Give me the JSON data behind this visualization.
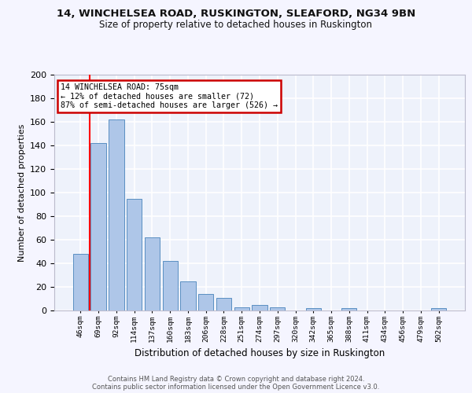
{
  "title1": "14, WINCHELSEA ROAD, RUSKINGTON, SLEAFORD, NG34 9BN",
  "title2": "Size of property relative to detached houses in Ruskington",
  "xlabel": "Distribution of detached houses by size in Ruskington",
  "ylabel": "Number of detached properties",
  "bar_values": [
    48,
    142,
    162,
    95,
    62,
    42,
    25,
    14,
    11,
    3,
    5,
    3,
    0,
    2,
    0,
    2,
    0,
    0,
    0,
    0,
    2
  ],
  "bar_labels": [
    "46sqm",
    "69sqm",
    "92sqm",
    "114sqm",
    "137sqm",
    "160sqm",
    "183sqm",
    "206sqm",
    "228sqm",
    "251sqm",
    "274sqm",
    "297sqm",
    "320sqm",
    "342sqm",
    "365sqm",
    "388sqm",
    "411sqm",
    "434sqm",
    "456sqm",
    "479sqm",
    "502sqm"
  ],
  "bar_color": "#aec6e8",
  "bar_edge_color": "#5a8fc2",
  "background_color": "#eef2fb",
  "grid_color": "#ffffff",
  "red_line_x": 0.5,
  "annotation_text": "14 WINCHELSEA ROAD: 75sqm\n← 12% of detached houses are smaller (72)\n87% of semi-detached houses are larger (526) →",
  "annotation_box_color": "#ffffff",
  "annotation_box_edge": "#cc0000",
  "footer": "Contains HM Land Registry data © Crown copyright and database right 2024.\nContains public sector information licensed under the Open Government Licence v3.0.",
  "ylim": [
    0,
    200
  ],
  "yticks": [
    0,
    20,
    40,
    60,
    80,
    100,
    120,
    140,
    160,
    180,
    200
  ],
  "fig_bg": "#f5f5ff"
}
